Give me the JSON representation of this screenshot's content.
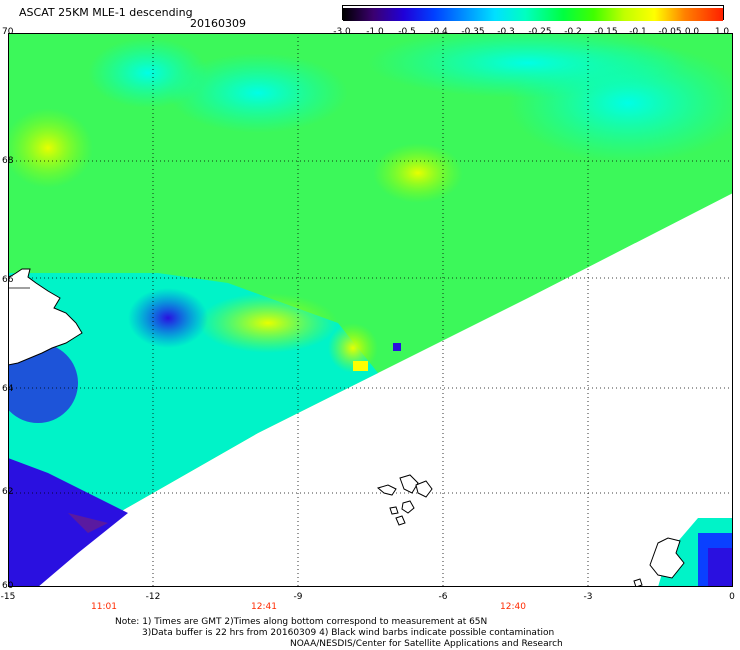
{
  "header": {
    "title": "ASCAT 25KM MLE-1 descending",
    "date": "20160309"
  },
  "colorbar": {
    "labels": [
      "-3.0",
      "-1.0",
      "-0.5",
      "-0.4",
      "-0.35",
      "-0.3",
      "-0.25",
      "-0.2",
      "-0.15",
      "-0.1",
      "-0.05",
      "0.0",
      "1.0"
    ],
    "colors": [
      "#000000",
      "#3b0070",
      "#2000d8",
      "#0040ff",
      "#0090ff",
      "#00e0ff",
      "#00ffc0",
      "#00ff40",
      "#40ff00",
      "#c0ff00",
      "#ffff00",
      "#ff8000",
      "#ff2000"
    ]
  },
  "axes": {
    "lat_labels": [
      "70",
      "68",
      "66",
      "64",
      "62",
      "60"
    ],
    "lon_labels": [
      "-15",
      "-12",
      "-9",
      "-6",
      "-3",
      "0"
    ],
    "time_labels": [
      "11:01",
      "12:41",
      "12:40"
    ]
  },
  "notes": {
    "line1": "Note: 1) Times are GMT 2)Times along bottom correspond to measurement at 65N",
    "line2": "3)Data buffer is 22 hrs from 20160309 4) Black wind barbs indicate possible contamination",
    "line3": "NOAA/NESDIS/Center for Satellite Applications and Research"
  },
  "colors": {
    "time_label": "#ff2a00",
    "land_outline": "#000000"
  }
}
